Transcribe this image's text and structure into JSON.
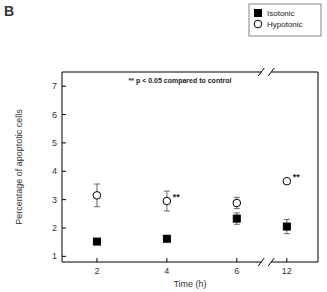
{
  "chart_data": {
    "type": "scatter",
    "title": "B",
    "x_label": "Time (h)",
    "y_label": "Percentage of apoptotic cells",
    "x": [
      2,
      4,
      6,
      12
    ],
    "series": [
      {
        "name": "Isotonic",
        "color": "#000000",
        "marker": "square",
        "values": [
          1.52,
          1.62,
          2.33,
          2.05
        ],
        "errors": [
          0.08,
          0.1,
          0.2,
          0.25
        ]
      },
      {
        "name": "Hypotonic",
        "color": "#000000",
        "marker": "circle-open",
        "values": [
          3.15,
          2.95,
          2.88,
          3.65
        ],
        "errors": [
          0.4,
          0.35,
          0.2,
          0.05
        ]
      }
    ],
    "xlim": [
      1,
      13
    ],
    "x_break": [
      6.7,
      11.5
    ],
    "ylim": [
      0.8,
      7.5
    ],
    "xticks": [
      2,
      4,
      6,
      12
    ],
    "yticks": [
      1,
      2,
      3,
      4,
      5,
      6,
      7
    ],
    "legend": "upper right",
    "annotations": [
      {
        "text": "** p < 0.05 compared to control"
      },
      {
        "text": "**",
        "x": 4,
        "y": 2.95
      },
      {
        "text": "**",
        "x": 12,
        "y": 3.65
      }
    ]
  }
}
